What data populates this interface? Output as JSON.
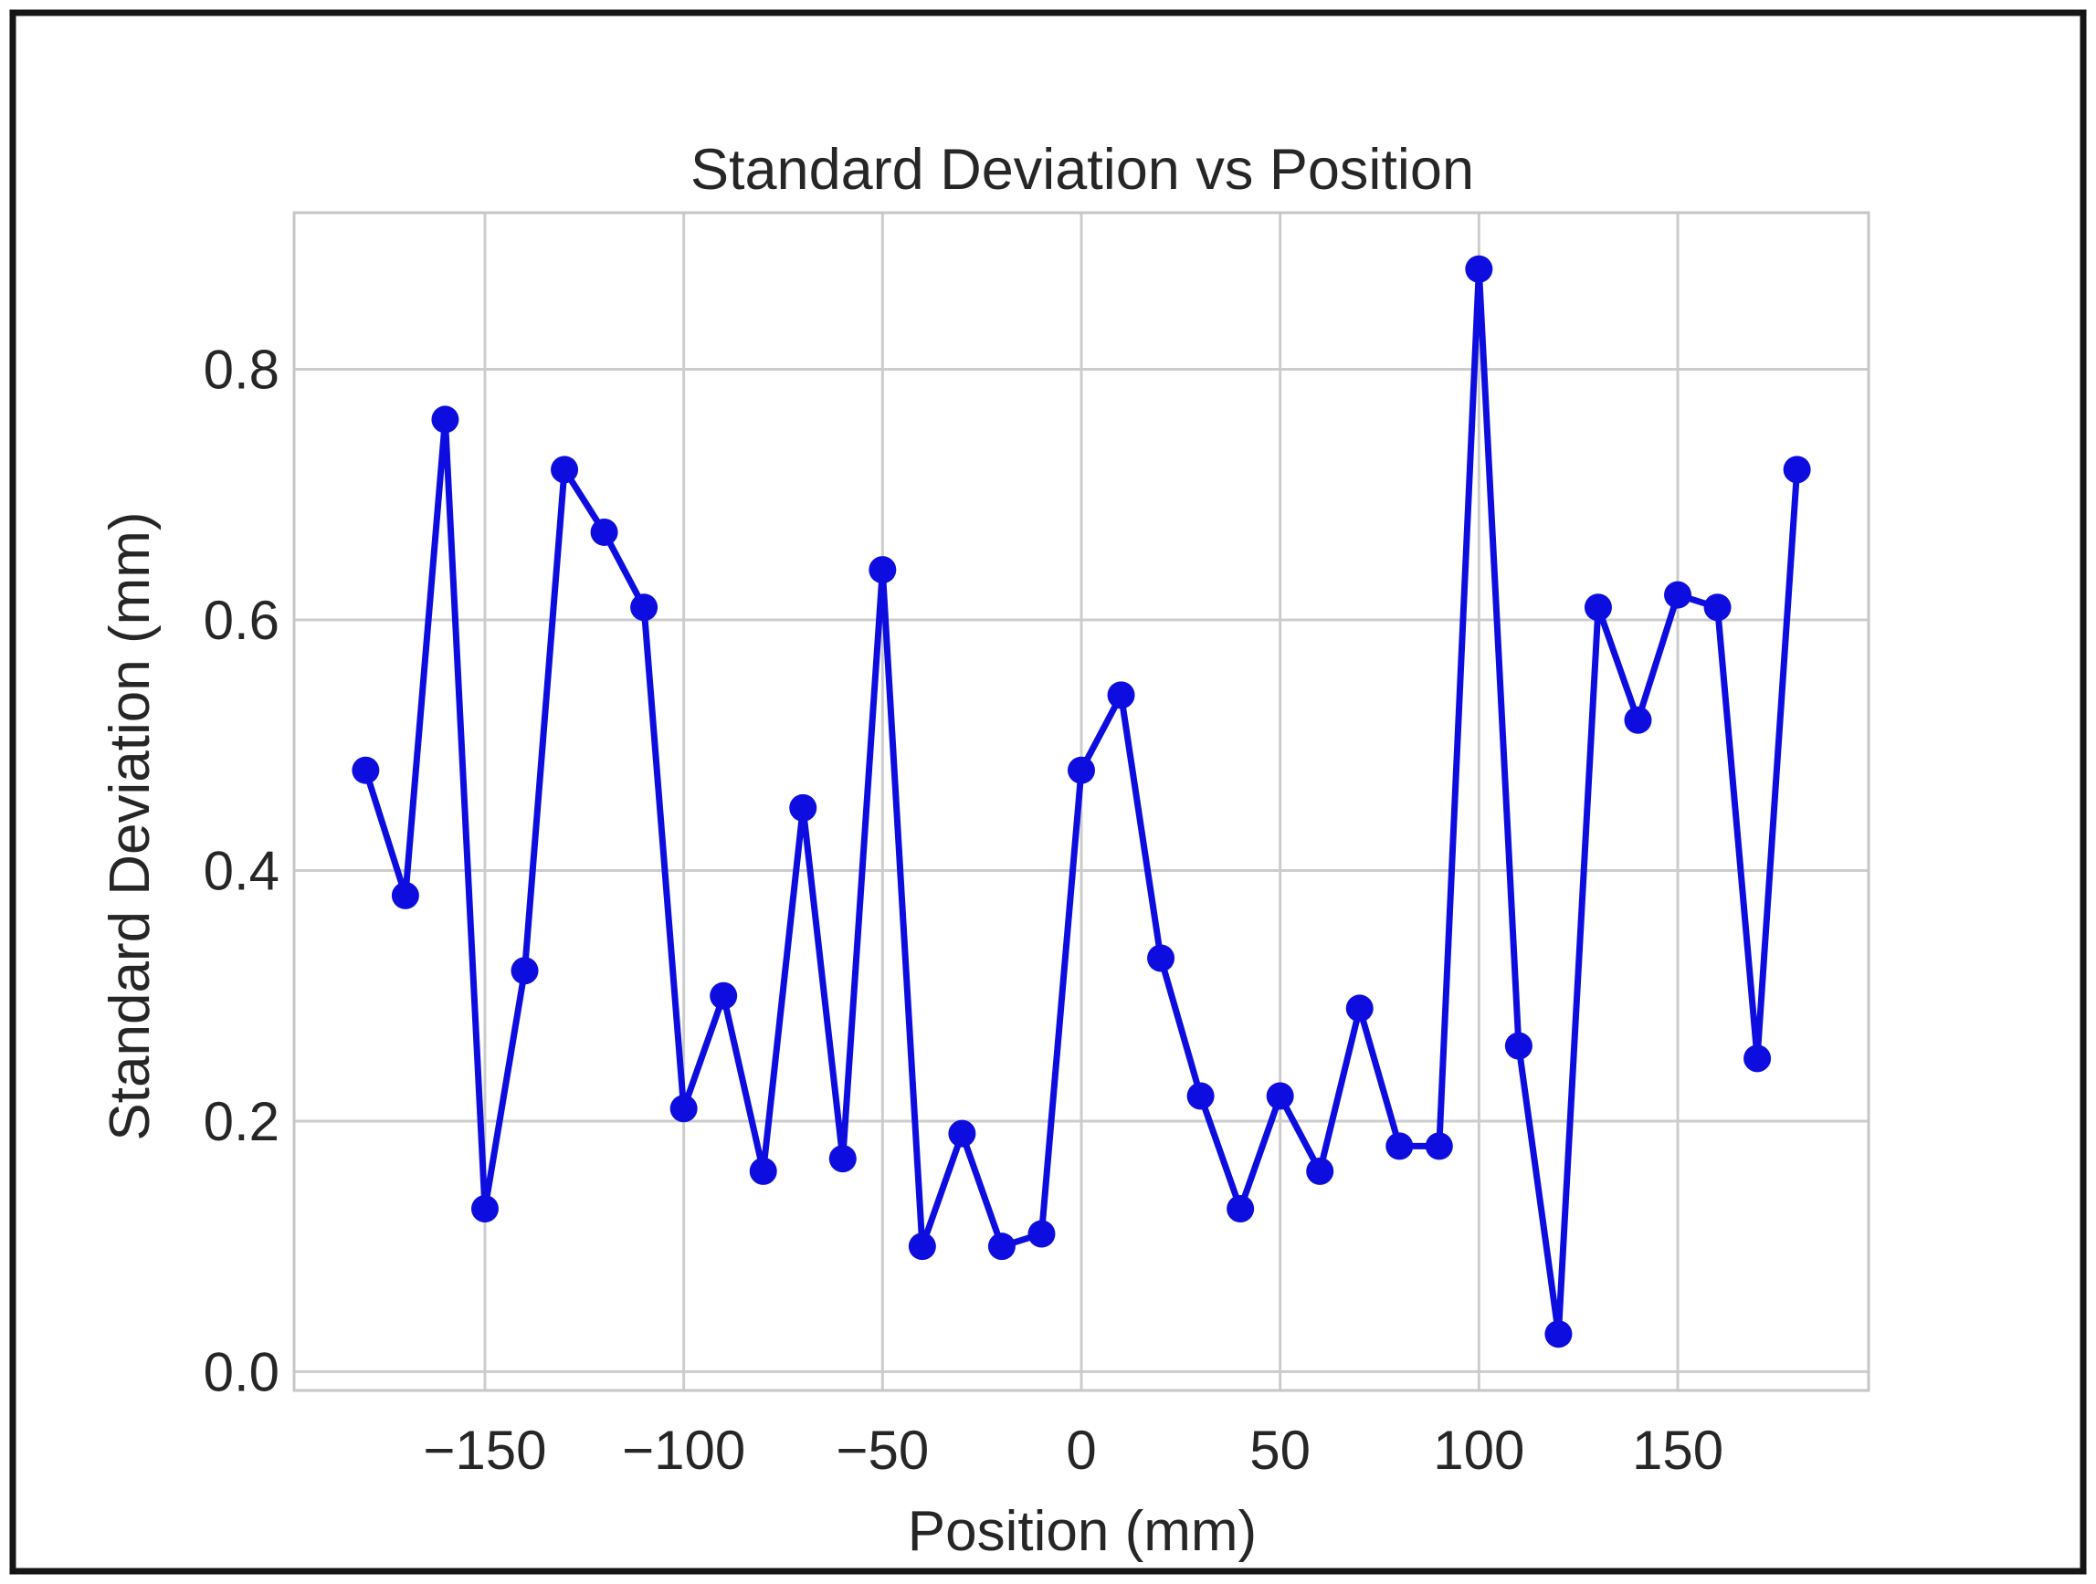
{
  "chart_data": {
    "type": "line",
    "title": "Standard Deviation vs Position",
    "xlabel": "Position (mm)",
    "ylabel": "Standard Deviation (mm)",
    "x": [
      -180,
      -170,
      -160,
      -150,
      -140,
      -130,
      -120,
      -110,
      -100,
      -90,
      -80,
      -70,
      -60,
      -50,
      -40,
      -30,
      -20,
      -10,
      0,
      10,
      20,
      30,
      40,
      50,
      60,
      70,
      80,
      90,
      100,
      110,
      120,
      130,
      140,
      150,
      160,
      170,
      180
    ],
    "y": [
      0.48,
      0.38,
      0.76,
      0.13,
      0.32,
      0.72,
      0.67,
      0.61,
      0.21,
      0.3,
      0.16,
      0.45,
      0.17,
      0.64,
      0.1,
      0.19,
      0.1,
      0.11,
      0.48,
      0.54,
      0.33,
      0.22,
      0.13,
      0.22,
      0.16,
      0.29,
      0.18,
      0.18,
      0.88,
      0.26,
      0.03,
      0.61,
      0.52,
      0.62,
      0.61,
      0.25,
      0.72
    ],
    "xlim": [
      -198,
      198
    ],
    "ylim": [
      -0.015,
      0.925
    ],
    "xticks": {
      "values": [
        -150,
        -100,
        -50,
        0,
        50,
        100,
        150
      ],
      "labels": [
        "−150",
        "−100",
        "−50",
        "0",
        "50",
        "100",
        "150"
      ]
    },
    "yticks": {
      "values": [
        0.0,
        0.2,
        0.4,
        0.6,
        0.8
      ],
      "labels": [
        "0.0",
        "0.2",
        "0.4",
        "0.6",
        "0.8"
      ]
    },
    "grid": true,
    "legend": false,
    "line_color": "#0d0ddf",
    "marker": "circle"
  },
  "colors": {
    "grid": "#cccccc",
    "spine": "#c6c6c6",
    "text": "#262626",
    "frame_border": "#161616",
    "background": "#ffffff"
  }
}
